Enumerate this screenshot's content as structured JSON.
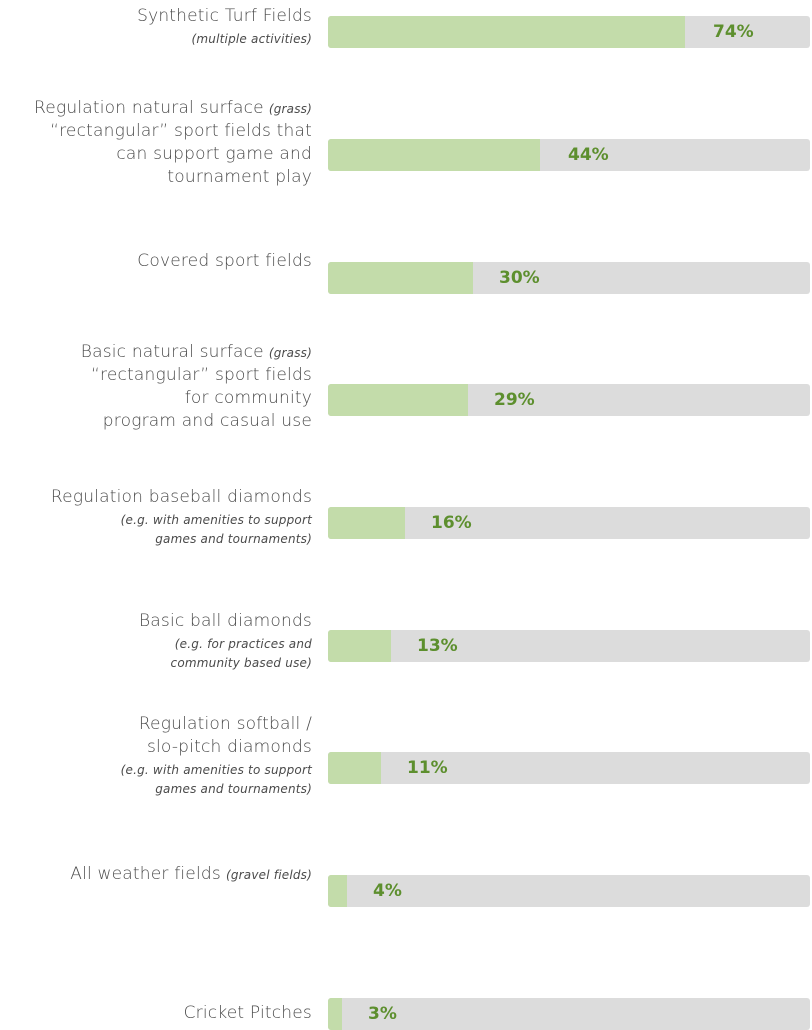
{
  "chart_data": {
    "type": "bar",
    "orientation": "horizontal",
    "title": "",
    "xlabel": "",
    "ylabel": "",
    "xlim": [
      0,
      100
    ],
    "grid": false,
    "colors": {
      "fill": "#c3dcaa",
      "track": "#dcdcdc",
      "value_label": "#5d8f2e",
      "text": "#4a4a4a"
    },
    "categories": [
      {
        "label": "Synthetic Turf Fields",
        "note": "(multiple activities)"
      },
      {
        "label": "Regulation natural surface",
        "inline_note": "(grass)",
        "label_cont": "“rectangular” sport fields that\ncan support game and\ntournament play"
      },
      {
        "label": "Covered sport fields"
      },
      {
        "label": "Basic natural surface",
        "inline_note": "(grass)",
        "label_cont": "“rectangular” sport fields\nfor community\nprogram and casual use"
      },
      {
        "label": "Regulation baseball diamonds",
        "note": "(e.g. with amenities to support\ngames and tournaments)"
      },
      {
        "label": "Basic ball diamonds",
        "note": "(e.g. for practices and\ncommunity based use)"
      },
      {
        "label": "Regulation softball /\nslo-pitch diamonds",
        "note": "(e.g. with amenities to support\ngames and tournaments)"
      },
      {
        "label": "All weather fields",
        "inline_note": "(gravel fields)"
      },
      {
        "label": "Cricket Pitches"
      }
    ],
    "values": [
      74,
      44,
      30,
      29,
      16,
      13,
      11,
      4,
      3
    ],
    "value_labels": [
      "74%",
      "44%",
      "30%",
      "29%",
      "16%",
      "13%",
      "11%",
      "4%",
      "3%"
    ]
  }
}
